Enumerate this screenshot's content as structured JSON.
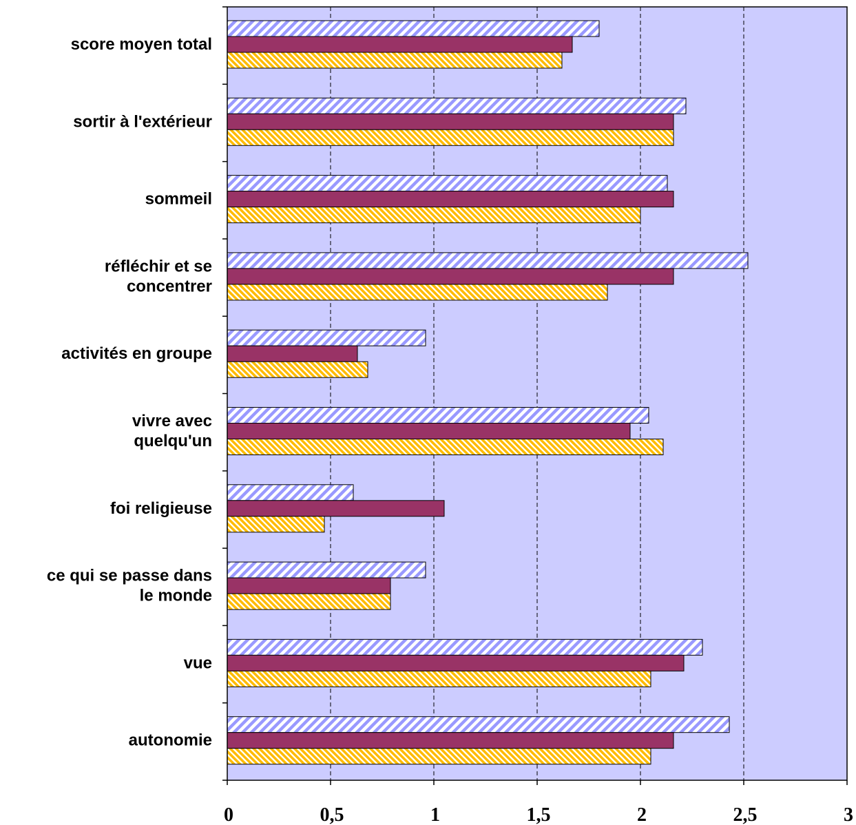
{
  "chart_data": {
    "type": "bar",
    "orientation": "horizontal",
    "categories": [
      "score moyen total",
      "sortir à l'extérieur",
      "sommeil",
      "réfléchir et se concentrer",
      "activités en groupe",
      "vivre avec quelqu'un",
      "foi religieuse",
      "ce qui se passe dans le monde",
      "vue",
      "autonomie"
    ],
    "category_lines": [
      [
        "score moyen total"
      ],
      [
        "sortir à l'extérieur"
      ],
      [
        "sommeil"
      ],
      [
        "réfléchir et se",
        "concentrer"
      ],
      [
        "activités en groupe"
      ],
      [
        "vivre avec",
        "quelqu'un"
      ],
      [
        "foi religieuse"
      ],
      [
        "ce qui se passe dans",
        "le monde"
      ],
      [
        "vue"
      ],
      [
        "autonomie"
      ]
    ],
    "series": [
      {
        "values": [
          1.8,
          2.22,
          2.13,
          2.52,
          0.96,
          2.04,
          0.61,
          0.96,
          2.3,
          2.43
        ],
        "color": "#9999ff",
        "pattern": "diagonal-stripes"
      },
      {
        "values": [
          1.67,
          2.16,
          2.16,
          2.16,
          0.63,
          1.95,
          1.05,
          0.79,
          2.21,
          2.16
        ],
        "color": "#993366",
        "pattern": "solid"
      },
      {
        "values": [
          1.62,
          2.16,
          2.0,
          1.84,
          0.68,
          2.11,
          0.47,
          0.79,
          2.05,
          2.05
        ],
        "color": "#ffcc33",
        "pattern": "diagonal-stripes"
      }
    ],
    "xlim": [
      0,
      3
    ],
    "x_ticks": [
      0,
      0.5,
      1,
      1.5,
      2,
      2.5,
      3
    ],
    "x_tick_labels": [
      "0",
      "0,5",
      "1",
      "1,5",
      "2",
      "2,5",
      "3"
    ],
    "grid": "vertical-dashed",
    "plot_background": "#ccccff",
    "legend": "none"
  }
}
